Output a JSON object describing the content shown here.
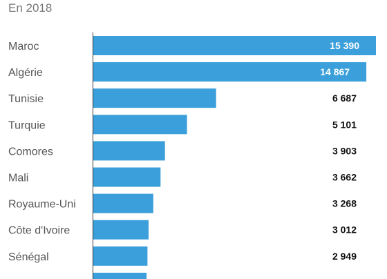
{
  "chart_data": {
    "type": "bar",
    "orientation": "horizontal",
    "subtitle": "En 2018",
    "categories": [
      "Maroc",
      "Algérie",
      "Tunisie",
      "Turquie",
      "Comores",
      "Mali",
      "Royaume-Uni",
      "Côte d'Ivoire",
      "Sénégal",
      ""
    ],
    "values": [
      15390,
      14867,
      6687,
      5101,
      3903,
      3662,
      3268,
      3012,
      2949,
      2900
    ],
    "value_labels": [
      "15 390",
      "14 867",
      "6 687",
      "5 101",
      "3 903",
      "3 662",
      "3 268",
      "3 012",
      "2 949",
      ""
    ],
    "xlim": [
      0,
      15390
    ],
    "bar_color": "#3a9fda",
    "label_color_inside": "#ffffff",
    "label_color_outside": "#111111",
    "grid": false
  }
}
